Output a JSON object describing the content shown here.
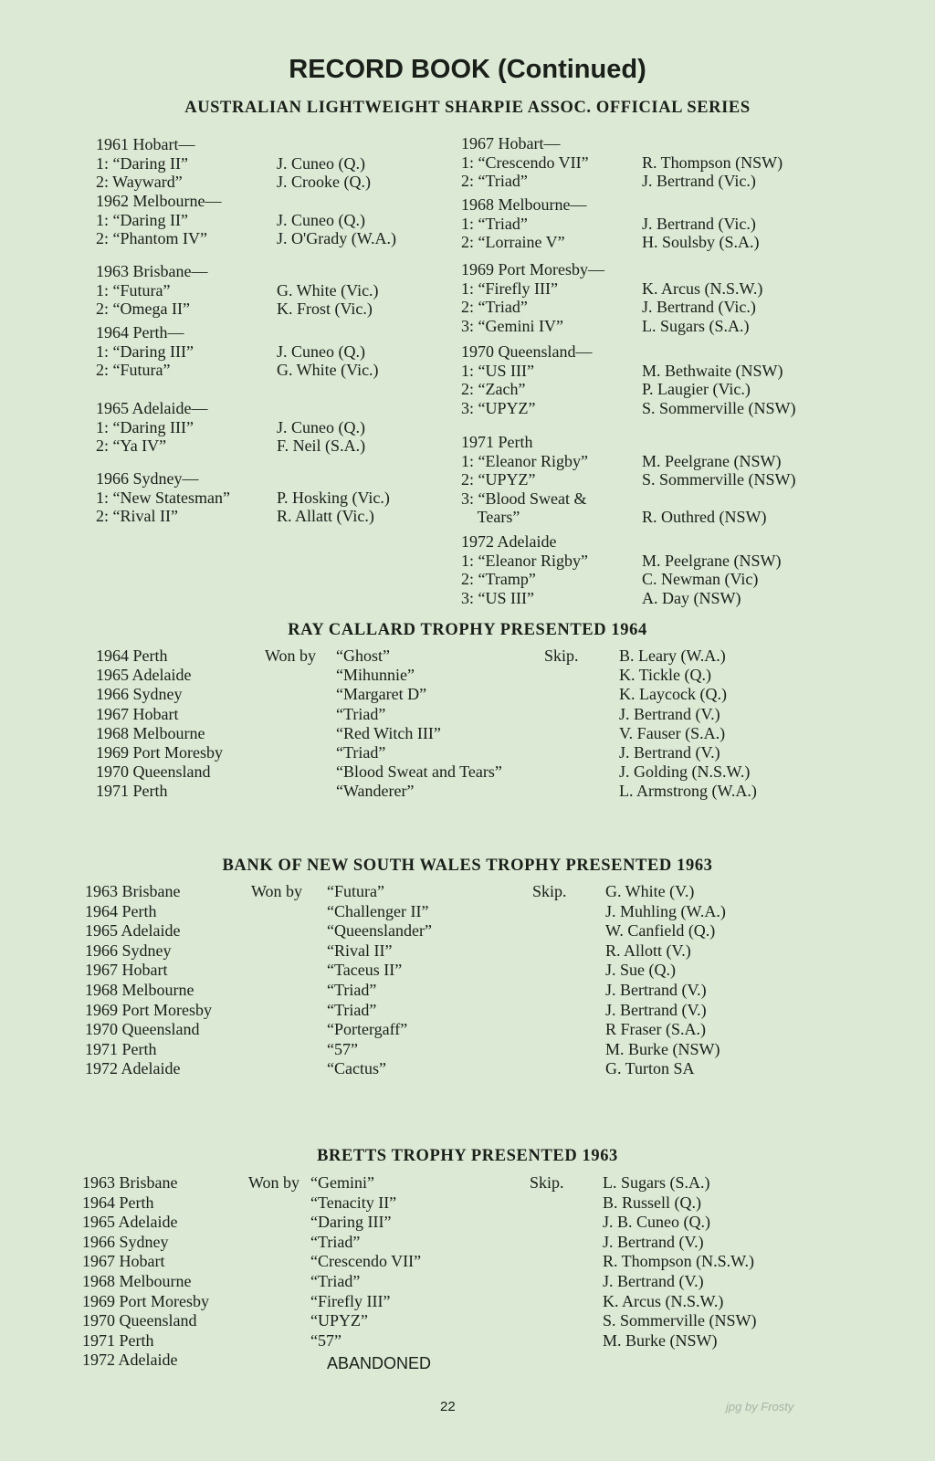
{
  "title": "RECORD BOOK (Continued)",
  "series": {
    "heading": "AUSTRALIAN LIGHTWEIGHT SHARPIE ASSOC. OFFICIAL SERIES",
    "left": [
      {
        "event": "1961 Hobart—",
        "results": [
          [
            "1: “Daring II”",
            "J. Cuneo (Q.)"
          ],
          [
            "2: Wayward”",
            "J. Crooke (Q.)"
          ]
        ]
      },
      {
        "event": "1962 Melbourne—",
        "results": [
          [
            "1: “Daring II”",
            "J. Cuneo (Q.)"
          ],
          [
            "2: “Phantom IV”",
            "J. O'Grady (W.A.)"
          ]
        ]
      },
      {
        "event": "1963 Brisbane—",
        "results": [
          [
            "1: “Futura”",
            "G. White (Vic.)"
          ],
          [
            "2: “Omega II”",
            "K. Frost (Vic.)"
          ]
        ]
      },
      {
        "event": "1964 Perth—",
        "results": [
          [
            "1: “Daring III”",
            "J. Cuneo (Q.)"
          ],
          [
            "2: “Futura”",
            "G. White (Vic.)"
          ]
        ]
      },
      {
        "event": "1965 Adelaide—",
        "results": [
          [
            "1: “Daring III”",
            "J. Cuneo (Q.)"
          ],
          [
            "2: “Ya IV”",
            "F. Neil (S.A.)"
          ]
        ]
      },
      {
        "event": "1966 Sydney—",
        "results": [
          [
            "1: “New Statesman”",
            "P. Hosking (Vic.)"
          ],
          [
            "2: “Rival II”",
            "R. Allatt (Vic.)"
          ]
        ]
      }
    ],
    "right": [
      {
        "event": "1967 Hobart—",
        "results": [
          [
            "1: “Crescendo VII”",
            "R. Thompson (NSW)"
          ],
          [
            "2: “Triad”",
            "J. Bertrand (Vic.)"
          ]
        ]
      },
      {
        "event": "1968 Melbourne—",
        "results": [
          [
            "1: “Triad”",
            "J. Bertrand (Vic.)"
          ],
          [
            "2: “Lorraine V”",
            "H. Soulsby (S.A.)"
          ]
        ]
      },
      {
        "event": "1969 Port Moresby—",
        "results": [
          [
            "1: “Firefly III”",
            "K. Arcus (N.S.W.)"
          ],
          [
            "2: “Triad”",
            "J. Bertrand (Vic.)"
          ],
          [
            "3: “Gemini IV”",
            "L. Sugars (S.A.)"
          ]
        ]
      },
      {
        "event": "1970 Queensland—",
        "results": [
          [
            "1: “US III”",
            "M. Bethwaite (NSW)"
          ],
          [
            "2: “Zach”",
            "P. Laugier (Vic.)"
          ],
          [
            "3: “UPYZ”",
            "S. Sommerville (NSW)"
          ]
        ]
      },
      {
        "event": "1971 Perth",
        "results": [
          [
            "1: “Eleanor Rigby”",
            "M. Peelgrane (NSW)"
          ],
          [
            "2: “UPYZ”",
            "S. Sommerville (NSW)"
          ],
          [
            "3: “Blood Sweat &",
            ""
          ],
          [
            "    Tears”",
            "R. Outhred (NSW)"
          ]
        ]
      },
      {
        "event": "1972 Adelaide",
        "results": [
          [
            "1: “Eleanor Rigby”",
            "M. Peelgrane (NSW)"
          ],
          [
            "2: “Tramp”",
            "C. Newman (Vic)"
          ],
          [
            "3: “US III”",
            "A. Day (NSW)"
          ]
        ]
      }
    ]
  },
  "trophies": [
    {
      "heading": "RAY CALLARD TROPHY PRESENTED 1964",
      "won_by": "Won by",
      "skip": "Skip.",
      "rows": [
        [
          "1964 Perth",
          "“Ghost”",
          "B. Leary (W.A.)"
        ],
        [
          "1965 Adelaide",
          "“Mihunnie”",
          "K. Tickle (Q.)"
        ],
        [
          "1966 Sydney",
          "“Margaret D”",
          "K. Laycock (Q.)"
        ],
        [
          "1967 Hobart",
          "“Triad”",
          "J. Bertrand (V.)"
        ],
        [
          "1968 Melbourne",
          "“Red Witch III”",
          "V. Fauser (S.A.)"
        ],
        [
          "1969 Port Moresby",
          "“Triad”",
          "J. Bertrand (V.)"
        ],
        [
          "1970 Queensland",
          "“Blood Sweat and Tears”",
          "J. Golding (N.S.W.)"
        ],
        [
          "1971 Perth",
          "“Wanderer”",
          "L. Armstrong (W.A.)"
        ]
      ]
    },
    {
      "heading": "BANK OF NEW SOUTH WALES TROPHY PRESENTED 1963",
      "won_by": "Won by",
      "skip": "Skip.",
      "rows": [
        [
          "1963 Brisbane",
          "“Futura”",
          "G. White (V.)"
        ],
        [
          "1964 Perth",
          "“Challenger II”",
          "J. Muhling (W.A.)"
        ],
        [
          "1965 Adelaide",
          "“Queenslander”",
          "W. Canfield (Q.)"
        ],
        [
          "1966 Sydney",
          "“Rival II”",
          "R. Allott (V.)"
        ],
        [
          "1967 Hobart",
          "“Taceus II”",
          "J. Sue (Q.)"
        ],
        [
          "1968 Melbourne",
          "“Triad”",
          "J. Bertrand (V.)"
        ],
        [
          "1969 Port Moresby",
          "“Triad”",
          "J. Bertrand (V.)"
        ],
        [
          "1970 Queensland",
          "“Portergaff”",
          "R Fraser (S.A.)"
        ],
        [
          "1971 Perth",
          "“57”",
          "M. Burke (NSW)"
        ],
        [
          "1972 Adelaide",
          "“Cactus”",
          "G. Turton SA"
        ]
      ]
    },
    {
      "heading": "BRETTS TROPHY PRESENTED 1963",
      "won_by": "Won by",
      "skip": "Skip.",
      "rows": [
        [
          "1963 Brisbane",
          "“Gemini”",
          "L. Sugars (S.A.)"
        ],
        [
          "1964 Perth",
          "“Tenacity II”",
          "B. Russell (Q.)"
        ],
        [
          "1965 Adelaide",
          "“Daring III”",
          "J. B. Cuneo (Q.)"
        ],
        [
          "1966 Sydney",
          "“Triad”",
          "J. Bertrand (V.)"
        ],
        [
          "1967 Hobart",
          "“Crescendo VII”",
          "R. Thompson (N.S.W.)"
        ],
        [
          "1968 Melbourne",
          "“Triad”",
          "J. Bertrand (V.)"
        ],
        [
          "1969 Port Moresby",
          "“Firefly III”",
          "K. Arcus (N.S.W.)"
        ],
        [
          "1970 Queensland",
          "“UPYZ”",
          "S. Sommerville (NSW)"
        ],
        [
          "1971 Perth",
          "“57”",
          "M. Burke (NSW)"
        ],
        [
          "1972 Adelaide",
          "ABANDONED",
          ""
        ]
      ]
    }
  ],
  "footer": {
    "page_number": "22",
    "watermark": "jpg by Frosty"
  }
}
